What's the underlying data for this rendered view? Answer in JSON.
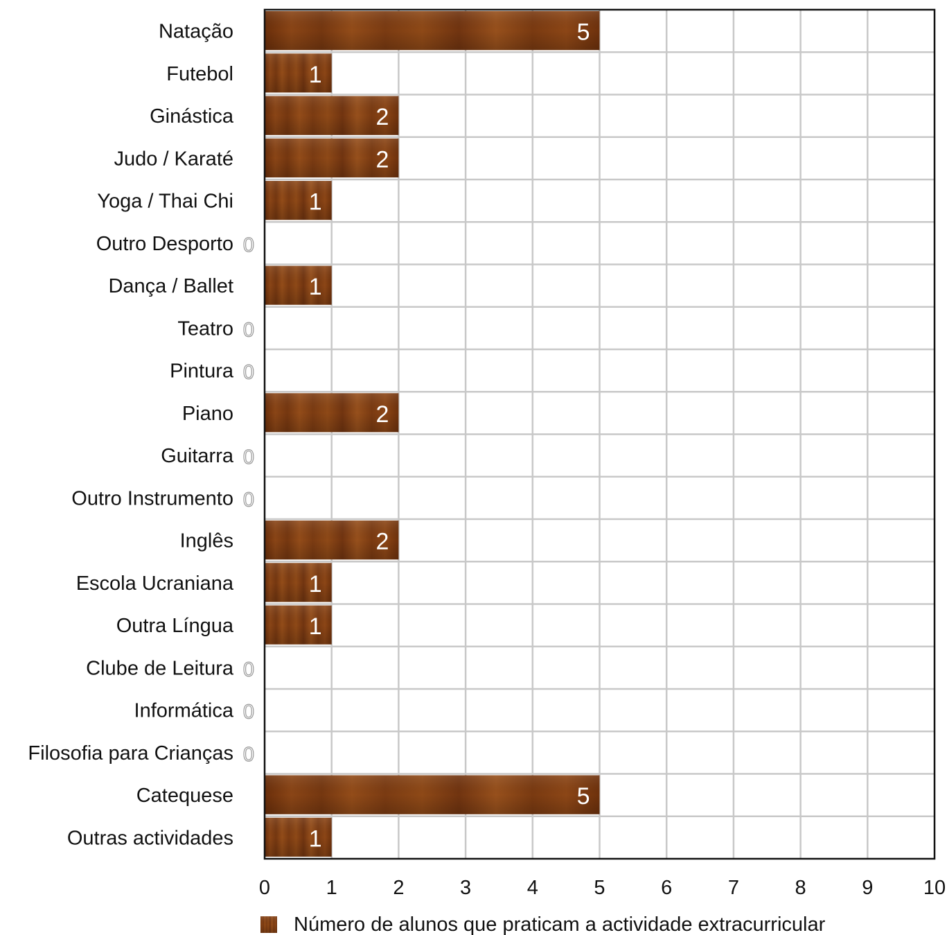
{
  "chart_data": {
    "type": "bar",
    "orientation": "horizontal",
    "categories": [
      "Natação",
      "Futebol",
      "Ginástica",
      "Judo / Karaté",
      "Yoga / Thai Chi",
      "Outro Desporto",
      "Dança / Ballet",
      "Teatro",
      "Pintura",
      "Piano",
      "Guitarra",
      "Outro Instrumento",
      "Inglês",
      "Escola Ucraniana",
      "Outra Língua",
      "Clube de Leitura",
      "Informática",
      "Filosofia para Crianças",
      "Catequese",
      "Outras actividades"
    ],
    "series": [
      {
        "name": "Número de alunos que praticam a actividade extracurricular",
        "values": [
          5,
          1,
          2,
          2,
          1,
          0,
          1,
          0,
          0,
          2,
          0,
          0,
          2,
          1,
          1,
          0,
          0,
          0,
          5,
          1
        ]
      }
    ],
    "xlim": [
      0,
      10
    ],
    "x_ticks": [
      "0",
      "1",
      "2",
      "3",
      "4",
      "5",
      "6",
      "7",
      "8",
      "9",
      "10"
    ],
    "grid": true,
    "legend_position": "bottom",
    "bar_color": "#7a3a0e"
  }
}
